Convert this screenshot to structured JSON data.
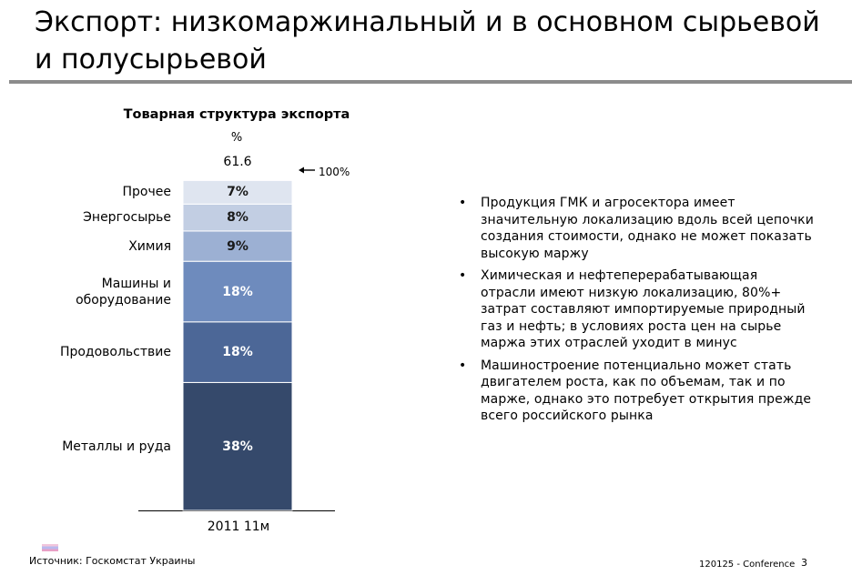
{
  "slide": {
    "title": "Экспорт: низкомаржинальный и в основном сырьевой и полусырьевой",
    "source": "Источник: Госкомстат Украины",
    "footer_code": "120125 - Conference",
    "page_number": "3"
  },
  "chart_data": {
    "type": "bar",
    "stacked": true,
    "title": "Товарная структура экспорта",
    "unit": "%",
    "total": "61.6",
    "total_reference": "100%",
    "categories": [
      "2011 11м"
    ],
    "series": [
      {
        "name": "Металлы и руда",
        "values": [
          38
        ],
        "label": "38%",
        "color": "#35496b"
      },
      {
        "name": "Продовольствие",
        "values": [
          18
        ],
        "label": "18%",
        "color": "#4c6797"
      },
      {
        "name": "Машины и оборудование",
        "values": [
          18
        ],
        "label": "18%",
        "color": "#6e8bbd"
      },
      {
        "name": "Химия",
        "values": [
          9
        ],
        "label": "9%",
        "color": "#9cb0d3"
      },
      {
        "name": "Энергосырье",
        "values": [
          8
        ],
        "label": "8%",
        "color": "#c2cee3"
      },
      {
        "name": "Прочее",
        "values": [
          7
        ],
        "label": "7%",
        "color": "#dfe5f0"
      }
    ],
    "ylim": [
      0,
      100
    ],
    "grid": false,
    "legend": "left"
  },
  "bullets": [
    "Продукция ГМК и агросектора имеет значительную локализацию вдоль всей цепочки создания стоимости, однако не может показать высокую маржу",
    "Химическая и нефтеперерабатывающая отрасли имеют низкую локализацию, 80%+ затрат составляют импортируемые природный газ и нефть; в условиях роста цен на сырье маржа этих отраслей уходит в минус",
    "Машиностроение потенциально может стать двигателем роста, как по объемам, так и по марже, однако это потребует открытия прежде всего российского рынка"
  ],
  "bullet_marker": "•",
  "arrow_icon": "left-arrow-icon"
}
